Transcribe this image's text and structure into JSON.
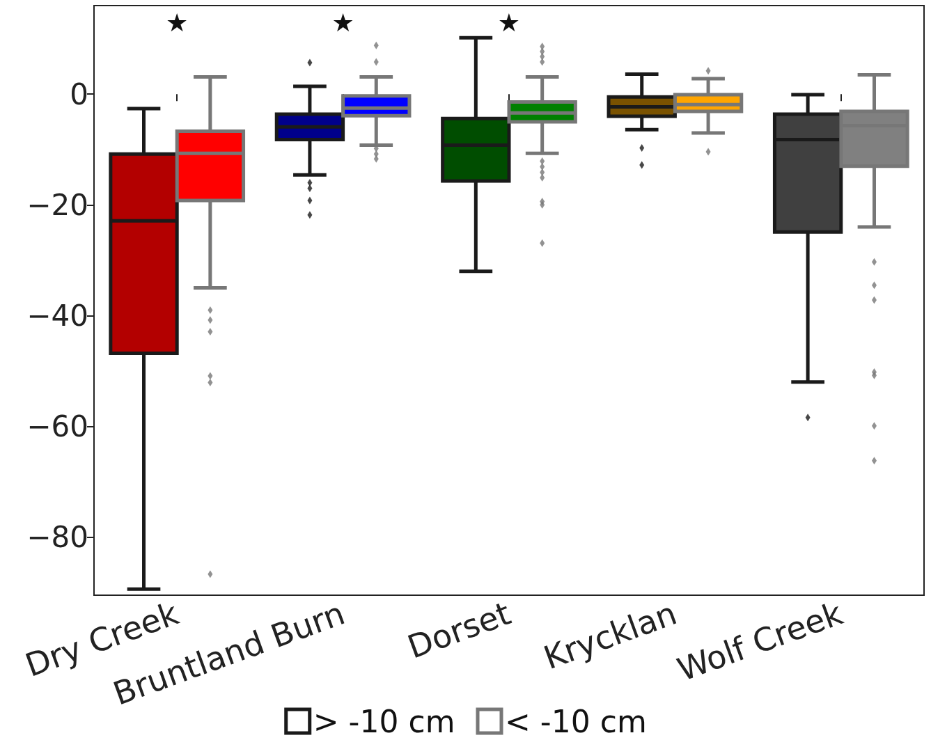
{
  "chart_data": {
    "type": "box",
    "categories": [
      "Dry Creek",
      "Bruntland Burn",
      "Dorset",
      "Krycklan",
      "Wolf Creek"
    ],
    "series": [
      {
        "name": "> -10 cm",
        "color": "#1a1a1a",
        "colors": [
          "#b30000",
          "#00008b",
          "#004d00",
          "#7a5200",
          "#404040"
        ],
        "boxes": [
          {
            "low": -89.4,
            "q1": -46.8,
            "median": -22.9,
            "q3": -10.8,
            "high": -2.6
          },
          {
            "low": -14.6,
            "q1": -8.2,
            "median": -5.9,
            "q3": -3.6,
            "high": 1.4,
            "outliers": [
              5.7,
              -16,
              -17,
              -19.2,
              -21.8
            ]
          },
          {
            "low": -32,
            "q1": -15.7,
            "median": -9.2,
            "q3": -4.4,
            "high": 10.2
          },
          {
            "low": -6.4,
            "q1": -4,
            "median": -2.3,
            "q3": -0.5,
            "high": 3.6,
            "outliers": [
              -9.7,
              -12.8
            ]
          },
          {
            "low": -52,
            "q1": -24.9,
            "median": -8.2,
            "q3": -3.6,
            "high": -0.1,
            "outliers": [
              -58.4
            ]
          }
        ]
      },
      {
        "name": "< -10 cm",
        "color": "#777777",
        "colors": [
          "#ff0000",
          "#0000ff",
          "#008000",
          "#ffa500",
          "#808080"
        ],
        "boxes": [
          {
            "low": -35,
            "q1": -19.2,
            "median": -10.7,
            "q3": -6.7,
            "high": 3.1,
            "outliers": [
              -39,
              -40.8,
              -42.9,
              -50.9,
              -52.1,
              -86.7
            ]
          },
          {
            "low": -9.2,
            "q1": -3.9,
            "median": -2.5,
            "q3": -0.3,
            "high": 3.1,
            "outliers": [
              8.8,
              5.8,
              -9.8,
              -10.8,
              -11.7
            ]
          },
          {
            "low": -10.7,
            "q1": -5,
            "median": -3.4,
            "q3": -1.4,
            "high": 3.1,
            "outliers": [
              8.6,
              7.7,
              6.8,
              5.8,
              -12.1,
              -13.1,
              -14.1,
              -15.1,
              -19.4,
              -20,
              -26.9
            ]
          },
          {
            "low": -7,
            "q1": -3.1,
            "median": -1.9,
            "q3": -0.1,
            "high": 2.8,
            "outliers": [
              4.2,
              -10.4
            ]
          },
          {
            "low": -24,
            "q1": -13,
            "median": -5.7,
            "q3": -3.1,
            "high": 3.5,
            "outliers": [
              -30.3,
              -34.5,
              -37.2,
              -50.2,
              -50.8,
              -59.9,
              -66.2
            ]
          }
        ]
      }
    ],
    "ylim": [
      -90.5,
      16
    ],
    "yticks": [
      -80,
      -60,
      -40,
      -20,
      0
    ],
    "grid": false,
    "legend": "bottom",
    "marker": "diamond",
    "annotations": [
      "★",
      "★",
      "★"
    ]
  }
}
